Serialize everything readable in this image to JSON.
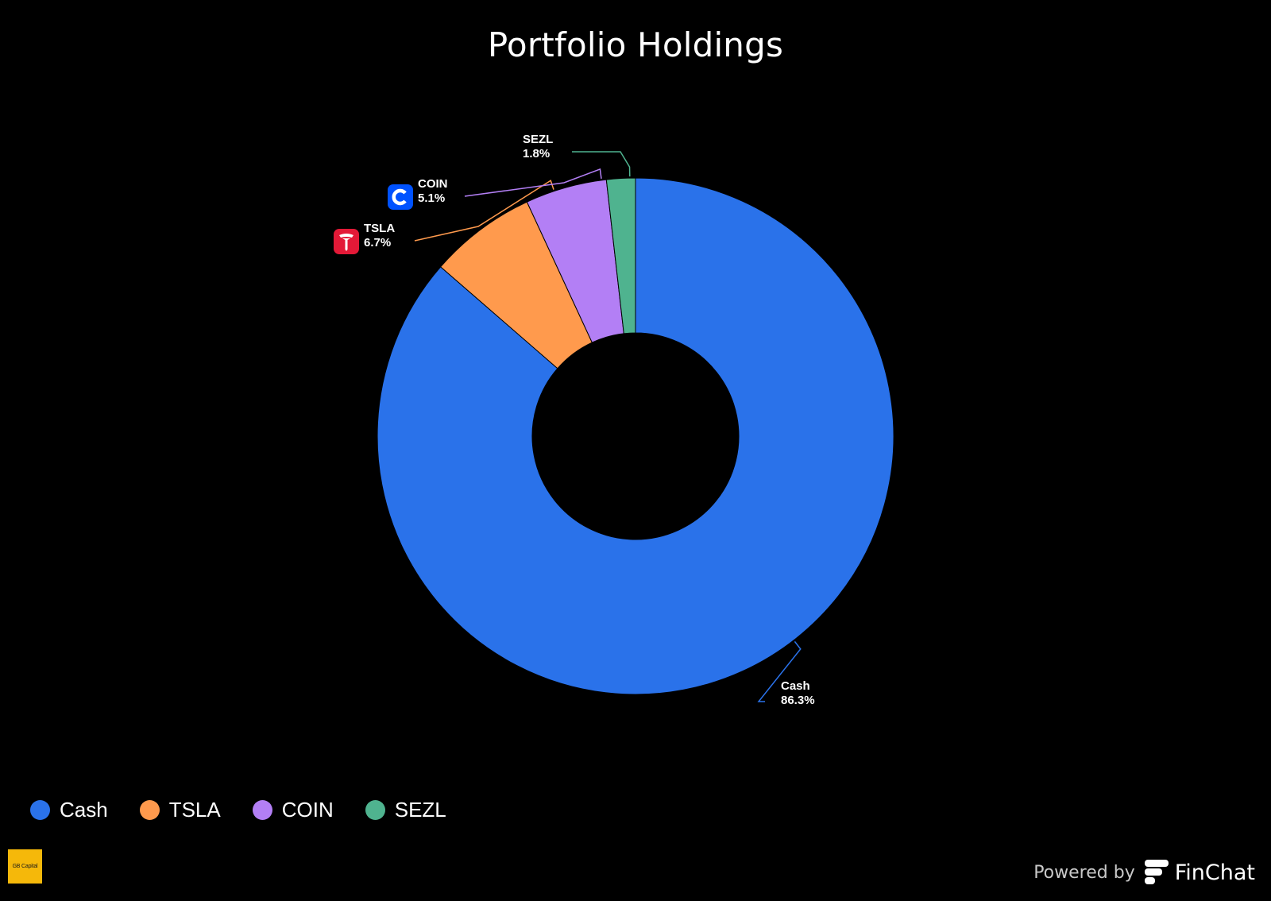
{
  "chart_data": {
    "type": "pie",
    "title": "Portfolio Holdings",
    "slices": [
      {
        "label": "Cash",
        "value": 86.3,
        "value_label": "86.3%",
        "color": "#2a72ea",
        "icon": null
      },
      {
        "label": "TSLA",
        "value": 6.7,
        "value_label": "6.7%",
        "color": "#ff9a4d",
        "icon": "tesla-logo-icon"
      },
      {
        "label": "COIN",
        "value": 5.1,
        "value_label": "5.1%",
        "color": "#b37ff5",
        "icon": "coinbase-logo-icon"
      },
      {
        "label": "SEZL",
        "value": 1.8,
        "value_label": "1.8%",
        "color": "#4fb38f",
        "icon": null
      }
    ],
    "donut": true,
    "legend": "bottom-left"
  },
  "branding": {
    "logo_text": "GB Capital",
    "powered_by": "Powered by",
    "provider": "FinChat"
  },
  "colors": {
    "background": "#000000",
    "tesla_red": "#e31937",
    "coinbase_blue": "#0052ff",
    "logo_yellow": "#f5b80a"
  }
}
